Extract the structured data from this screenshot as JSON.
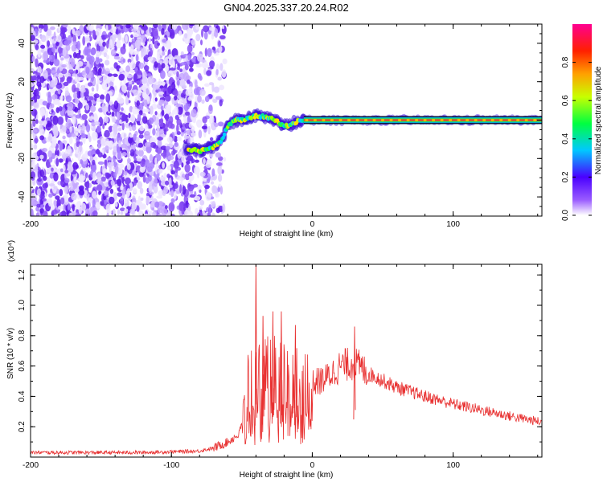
{
  "title": "GN04.2025.337.20.24.R02",
  "chart_data": [
    {
      "type": "heatmap",
      "xlabel": "Height of straight line (km)",
      "ylabel": "Frequency (Hz)",
      "xlim": [
        -200,
        163
      ],
      "ylim": [
        -50,
        50
      ],
      "xticks": [
        -200,
        -100,
        0,
        100
      ],
      "yticks": [
        -40,
        -20,
        0,
        20,
        40
      ],
      "xtick_labels": [
        "-200",
        "-100",
        "0",
        "100"
      ],
      "ytick_labels": [
        "-40",
        "-20",
        "0",
        "20",
        "40"
      ],
      "colorbar": {
        "label": "Normalized spectral amplitude",
        "ticks": [
          0.0,
          0.2,
          0.4,
          0.6,
          0.8
        ],
        "tick_labels": [
          "0.0",
          "0.2",
          "0.4",
          "0.6",
          "0.8"
        ],
        "range": [
          0,
          1
        ]
      },
      "noise_region_x": [
        -200,
        -70
      ],
      "signal_track": {
        "x": [
          -88,
          -80,
          -70,
          -64,
          -60,
          -55,
          -48,
          -42,
          -36,
          -30,
          -24,
          -20,
          -16,
          -12,
          -8,
          -4,
          0,
          20,
          60,
          100,
          163
        ],
        "frequency": [
          -15,
          -16,
          -14,
          -10,
          -3,
          0,
          0,
          2,
          2,
          1,
          -1,
          -3,
          -3,
          -1,
          0,
          0,
          0,
          0,
          0,
          0,
          0
        ]
      },
      "grid": false
    },
    {
      "type": "line",
      "xlabel": "Height of straight line (km)",
      "ylabel": "SNR (10 * v/v)",
      "multiplier": "(x10⁴)",
      "xlim": [
        -200,
        163
      ],
      "ylim": [
        0,
        1.27
      ],
      "xticks": [
        -200,
        -100,
        0,
        100
      ],
      "yticks": [
        0.2,
        0.4,
        0.6,
        0.8,
        1.0,
        1.2
      ],
      "xtick_labels": [
        "-200",
        "-100",
        "0",
        "100"
      ],
      "ytick_labels": [
        "0.2",
        "0.4",
        "0.6",
        "0.8",
        "1.0",
        "1.2"
      ],
      "line_color": "#e83030",
      "envelope": {
        "x": [
          -200,
          -120,
          -80,
          -70,
          -60,
          -52,
          -48,
          -44,
          -40,
          -30,
          -20,
          -10,
          0,
          10,
          20,
          30,
          40,
          60,
          80,
          100,
          120,
          140,
          163
        ],
        "y": [
          0.03,
          0.03,
          0.04,
          0.06,
          0.1,
          0.15,
          0.3,
          0.55,
          0.52,
          0.55,
          0.55,
          0.52,
          0.48,
          0.52,
          0.6,
          0.62,
          0.55,
          0.46,
          0.4,
          0.35,
          0.31,
          0.27,
          0.23
        ]
      },
      "spikes": [
        {
          "x": -40,
          "y": 1.27
        },
        {
          "x": -35,
          "y": 0.93
        },
        {
          "x": -28,
          "y": 0.96
        },
        {
          "x": -22,
          "y": 0.96
        },
        {
          "x": -12,
          "y": 0.87
        },
        {
          "x": 30,
          "y": 0.86
        }
      ],
      "grid": false
    }
  ]
}
